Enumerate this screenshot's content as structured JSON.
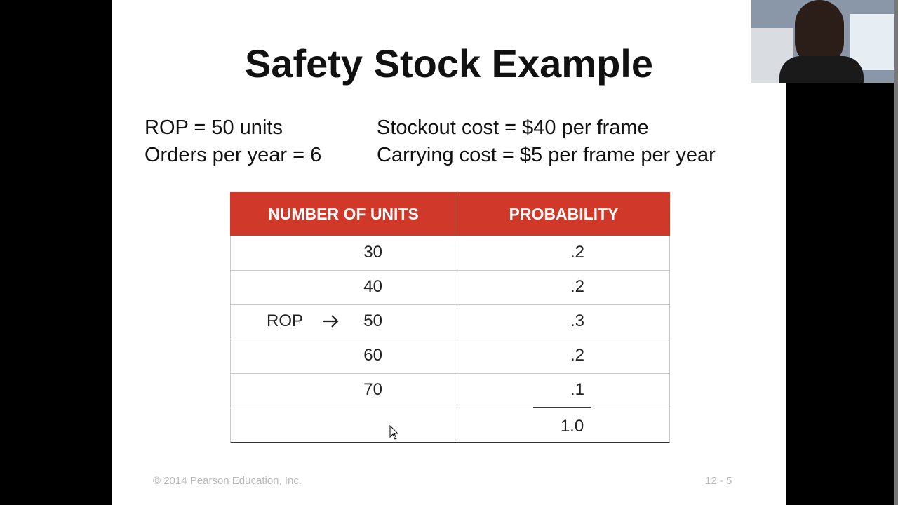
{
  "slide": {
    "title": "Safety Stock Example",
    "facts_left": [
      "ROP = 50 units",
      "Orders per year = 6"
    ],
    "facts_right": [
      "Stockout cost = $40 per frame",
      "Carrying cost = $5 per frame per year"
    ],
    "table": {
      "headers": [
        "NUMBER OF UNITS",
        "PROBABILITY"
      ],
      "rows": [
        {
          "units": "30",
          "probability": ".2"
        },
        {
          "units": "40",
          "probability": ".2"
        },
        {
          "marker": "ROP",
          "units": "50",
          "probability": ".3"
        },
        {
          "units": "60",
          "probability": ".2"
        },
        {
          "units": "70",
          "probability": ".1"
        }
      ],
      "total": "1.0"
    },
    "footer": "© 2014 Pearson Education, Inc.",
    "page": "12 - 5"
  }
}
